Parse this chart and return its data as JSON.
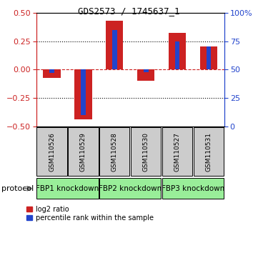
{
  "title": "GDS2573 / 1745637_1",
  "samples": [
    "GSM110526",
    "GSM110529",
    "GSM110528",
    "GSM110530",
    "GSM110527",
    "GSM110531"
  ],
  "log2_ratio": [
    -0.07,
    -0.44,
    0.43,
    -0.1,
    0.32,
    0.2
  ],
  "percentile_rank": [
    47,
    10,
    85,
    48,
    75,
    70
  ],
  "ylim_left": [
    -0.5,
    0.5
  ],
  "ylim_right": [
    0,
    100
  ],
  "yticks_left": [
    -0.5,
    -0.25,
    0,
    0.25,
    0.5
  ],
  "yticks_right": [
    0,
    25,
    50,
    75,
    100
  ],
  "ytick_labels_right": [
    "0",
    "25",
    "50",
    "75",
    "100%"
  ],
  "red_color": "#cc2222",
  "blue_color": "#2244cc",
  "groups": [
    {
      "label": "FBP1 knockdown",
      "samples": [
        0,
        1
      ]
    },
    {
      "label": "FBP2 knockdown",
      "samples": [
        2,
        3
      ]
    },
    {
      "label": "FBP3 knockdown",
      "samples": [
        4,
        5
      ]
    }
  ],
  "bar_width": 0.55,
  "blue_bar_width": 0.15,
  "legend_red_label": "log2 ratio",
  "legend_blue_label": "percentile rank within the sample",
  "protocol_label": "protocol",
  "background_color": "#ffffff",
  "label_area_color": "#cccccc",
  "group_area_color": "#99ee99"
}
